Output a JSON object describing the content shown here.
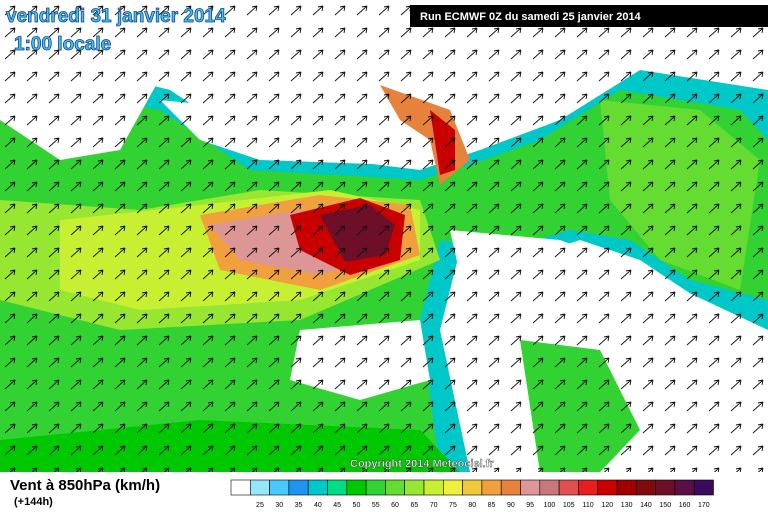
{
  "header": {
    "date": "vendredi 31 janvier 2014",
    "time": "1:00 locale",
    "run": "Run ECMWF 0Z du samedi 25 janvier 2014"
  },
  "copyright": "Copyright 2014 Meteociel.fr",
  "footer": {
    "title": "Vent à 850hPa (km/h)",
    "lead": "(+144h)"
  },
  "legend": {
    "colors": [
      "#ffffff",
      "#96e6ff",
      "#4bc8ff",
      "#1e96f0",
      "#00c8c8",
      "#00dc82",
      "#00c800",
      "#32d232",
      "#64dc32",
      "#96e632",
      "#c8f032",
      "#f0f03c",
      "#f0c83c",
      "#f0a03c",
      "#e6823c",
      "#dc9696",
      "#c87878",
      "#e05050",
      "#e61e1e",
      "#c80000",
      "#a00000",
      "#820a0a",
      "#6e0f28",
      "#5a0f46",
      "#3c0a5a"
    ],
    "labels": [
      25,
      30,
      35,
      40,
      45,
      50,
      55,
      60,
      65,
      70,
      75,
      80,
      85,
      90,
      95,
      100,
      105,
      110,
      120,
      130,
      140,
      150,
      160,
      170
    ]
  }
}
